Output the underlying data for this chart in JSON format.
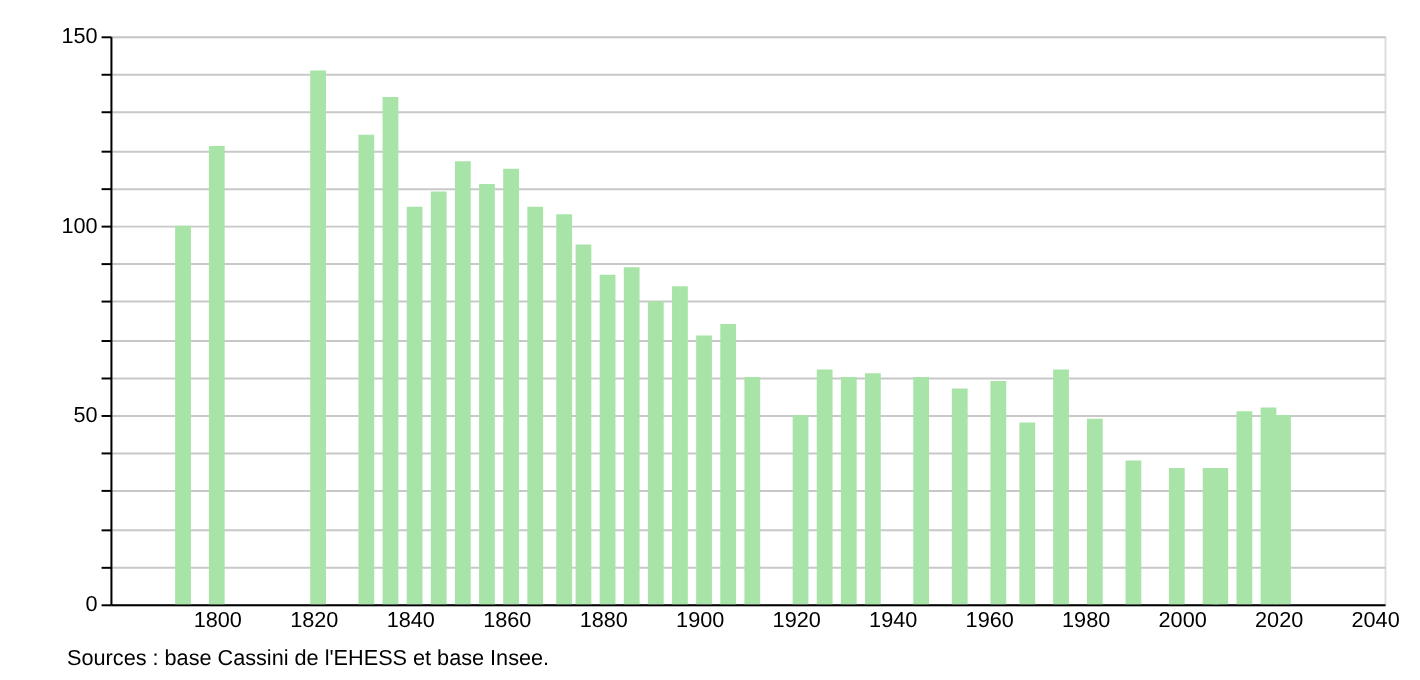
{
  "chart_data": {
    "type": "bar",
    "color": "#a8e4a8",
    "x": [
      1793,
      1800,
      1821,
      1831,
      1836,
      1841,
      1846,
      1851,
      1856,
      1861,
      1866,
      1872,
      1876,
      1881,
      1886,
      1891,
      1896,
      1901,
      1906,
      1911,
      1921,
      1926,
      1931,
      1936,
      1946,
      1954,
      1962,
      1968,
      1975,
      1982,
      1990,
      1999,
      2006,
      2008,
      2013,
      2018,
      2021
    ],
    "values": [
      100,
      121,
      141,
      124,
      134,
      105,
      109,
      117,
      111,
      115,
      105,
      103,
      95,
      87,
      89,
      80,
      84,
      71,
      74,
      60,
      50,
      62,
      60,
      61,
      60,
      57,
      59,
      48,
      62,
      49,
      38,
      36,
      36,
      36,
      51,
      52,
      50
    ],
    "xlim": [
      1780,
      2040
    ],
    "xticks": [
      1800,
      1820,
      1840,
      1860,
      1880,
      1900,
      1920,
      1940,
      1960,
      1980,
      2000,
      2020,
      2040
    ],
    "ylim": [
      0,
      150
    ],
    "yticks": [
      0,
      {
        "value": 10,
        "label": null
      },
      {
        "value": 20,
        "label": null
      },
      {
        "value": 30,
        "label": null
      },
      {
        "value": 40,
        "label": null
      },
      50,
      {
        "value": 60,
        "label": null
      },
      {
        "value": 70,
        "label": null
      },
      {
        "value": 80,
        "label": null
      },
      {
        "value": 90,
        "label": null
      },
      100,
      {
        "value": 110,
        "label": null
      },
      {
        "value": 120,
        "label": null
      },
      {
        "value": 130,
        "label": null
      },
      {
        "value": 140,
        "label": null
      },
      150
    ],
    "grid": "y",
    "annotations": [
      "Sources : base Cassini de l'EHESS et base Insee."
    ]
  }
}
